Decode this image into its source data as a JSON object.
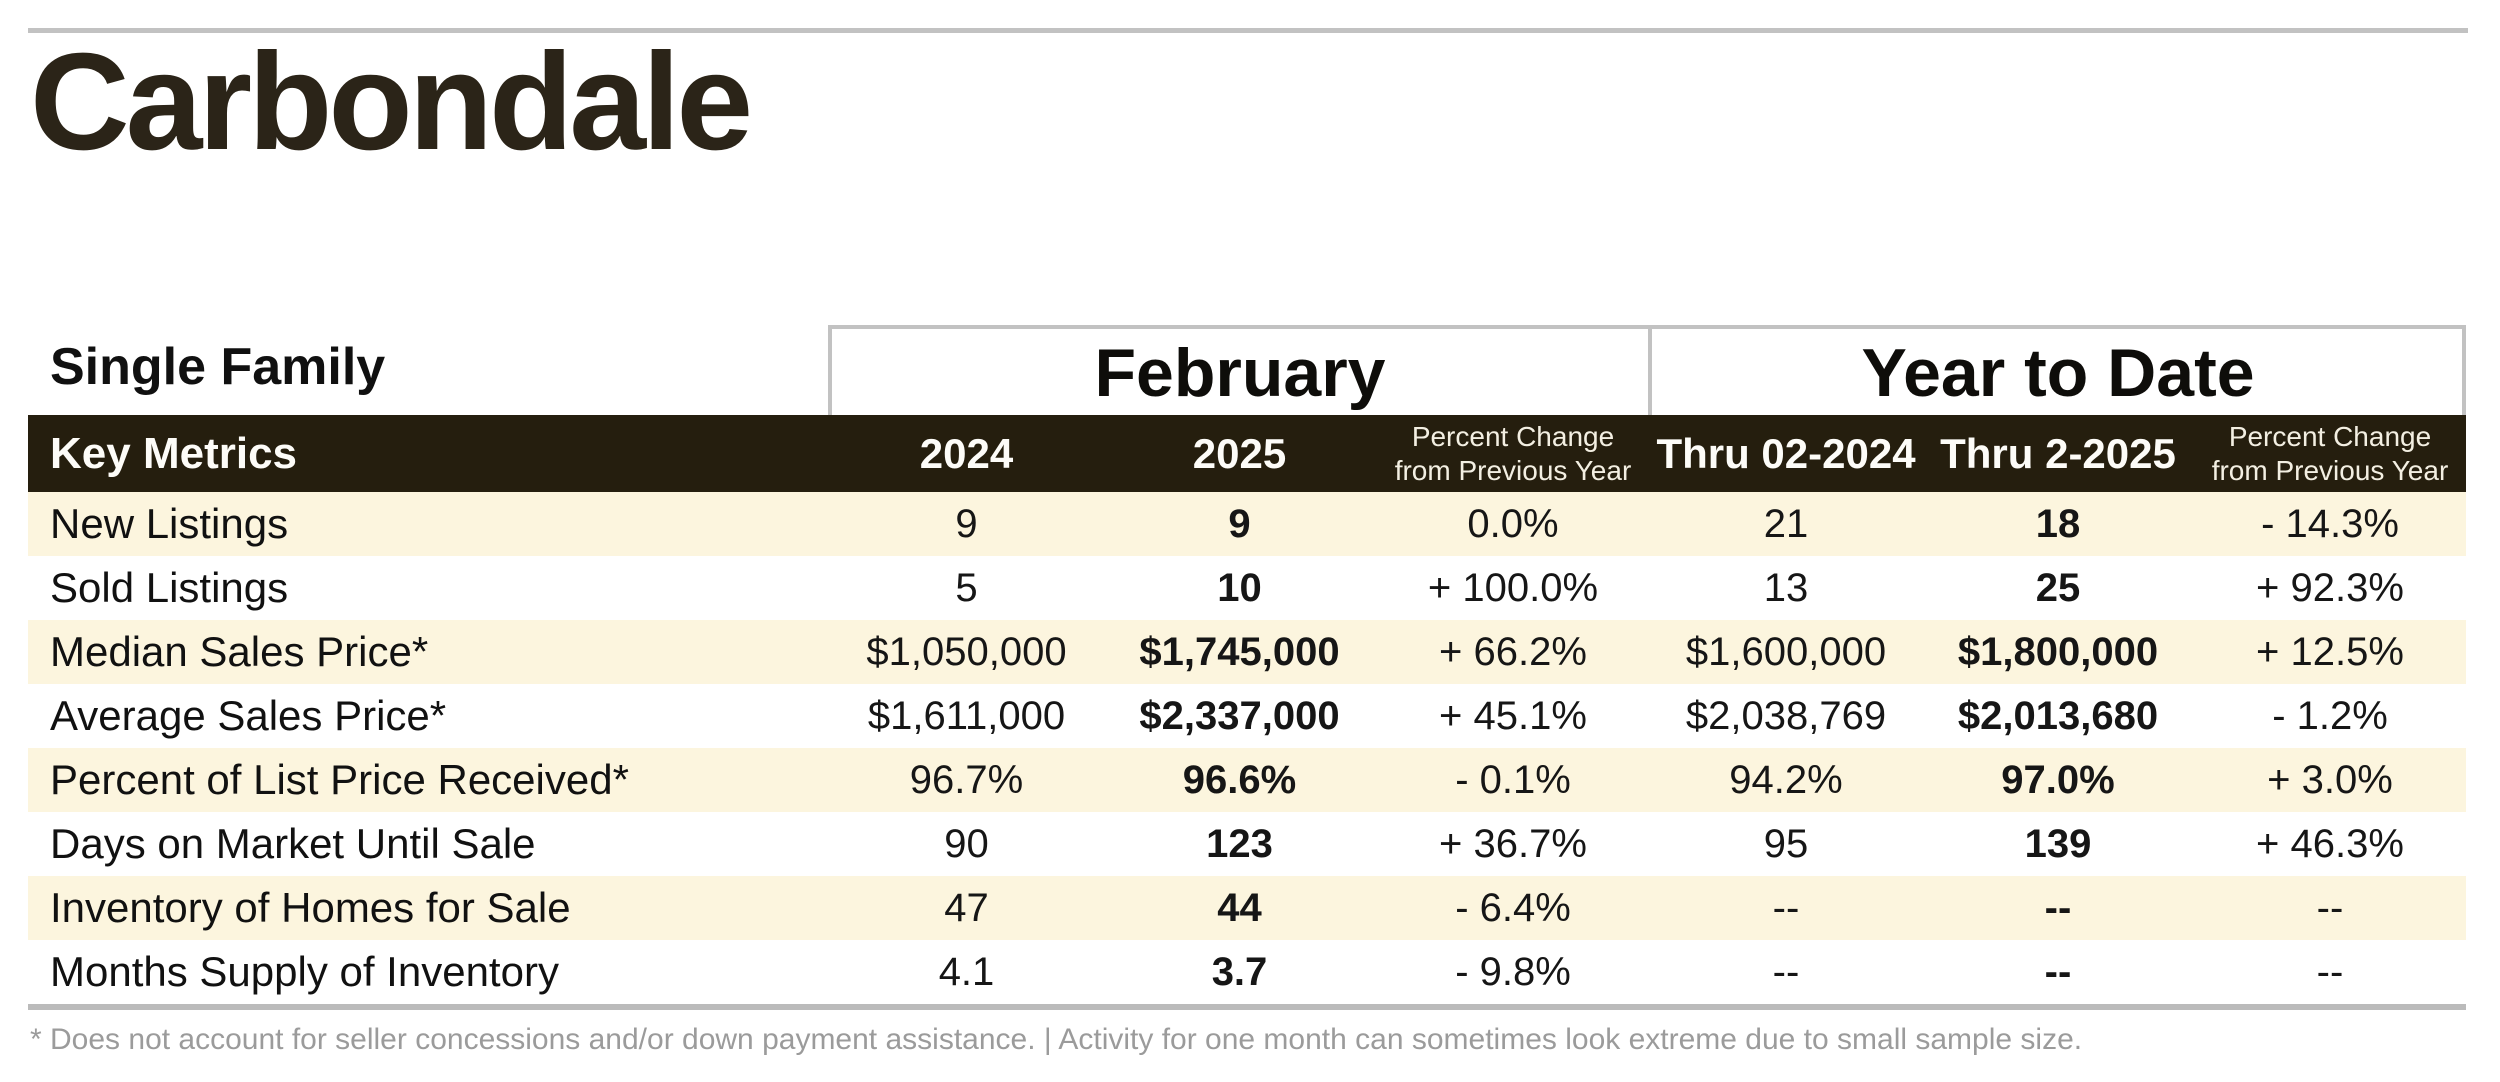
{
  "page": {
    "title": "Carbondale",
    "section_label": "Single Family",
    "footnote": "* Does not account for seller concessions and/or down payment assistance.  |  Activity for one month can sometimes look extreme due to small sample size."
  },
  "colors": {
    "header_bar_background": "#251E0E",
    "alt_row_background": "#FCF5DE",
    "border_gray": "#C2C2C2",
    "title_text": "#2B2418",
    "footnote_text": "#9B9B9B"
  },
  "table": {
    "corner_label": "Key Metrics",
    "groups": [
      {
        "label": "February"
      },
      {
        "label": "Year to Date"
      }
    ],
    "columns": {
      "feb_2024": "2024",
      "feb_2025": "2025",
      "feb_pct_line1": "Percent Change",
      "feb_pct_line2": "from Previous Year",
      "ytd_2024": "Thru 02-2024",
      "ytd_2025": "Thru 2-2025",
      "ytd_pct_line1": "Percent Change",
      "ytd_pct_line2": "from Previous Year"
    },
    "rows": [
      {
        "metric": "New Listings",
        "feb2024": "9",
        "feb2025": "9",
        "febChange": "0.0%",
        "ytd2024": "21",
        "ytd2025": "18",
        "ytdChange": "- 14.3%"
      },
      {
        "metric": "Sold Listings",
        "feb2024": "5",
        "feb2025": "10",
        "febChange": "+ 100.0%",
        "ytd2024": "13",
        "ytd2025": "25",
        "ytdChange": "+ 92.3%"
      },
      {
        "metric": "Median Sales Price*",
        "feb2024": "$1,050,000",
        "feb2025": "$1,745,000",
        "febChange": "+ 66.2%",
        "ytd2024": "$1,600,000",
        "ytd2025": "$1,800,000",
        "ytdChange": "+ 12.5%"
      },
      {
        "metric": "Average Sales Price*",
        "feb2024": "$1,611,000",
        "feb2025": "$2,337,000",
        "febChange": "+ 45.1%",
        "ytd2024": "$2,038,769",
        "ytd2025": "$2,013,680",
        "ytdChange": "- 1.2%"
      },
      {
        "metric": "Percent of List Price Received*",
        "feb2024": "96.7%",
        "feb2025": "96.6%",
        "febChange": "- 0.1%",
        "ytd2024": "94.2%",
        "ytd2025": "97.0%",
        "ytdChange": "+ 3.0%"
      },
      {
        "metric": "Days on Market Until Sale",
        "feb2024": "90",
        "feb2025": "123",
        "febChange": "+ 36.7%",
        "ytd2024": "95",
        "ytd2025": "139",
        "ytdChange": "+ 46.3%"
      },
      {
        "metric": "Inventory of Homes for Sale",
        "feb2024": "47",
        "feb2025": "44",
        "febChange": "- 6.4%",
        "ytd2024": "--",
        "ytd2025": "--",
        "ytdChange": "--"
      },
      {
        "metric": "Months Supply of Inventory",
        "feb2024": "4.1",
        "feb2025": "3.7",
        "febChange": "- 9.8%",
        "ytd2024": "--",
        "ytd2025": "--",
        "ytdChange": "--"
      }
    ]
  }
}
